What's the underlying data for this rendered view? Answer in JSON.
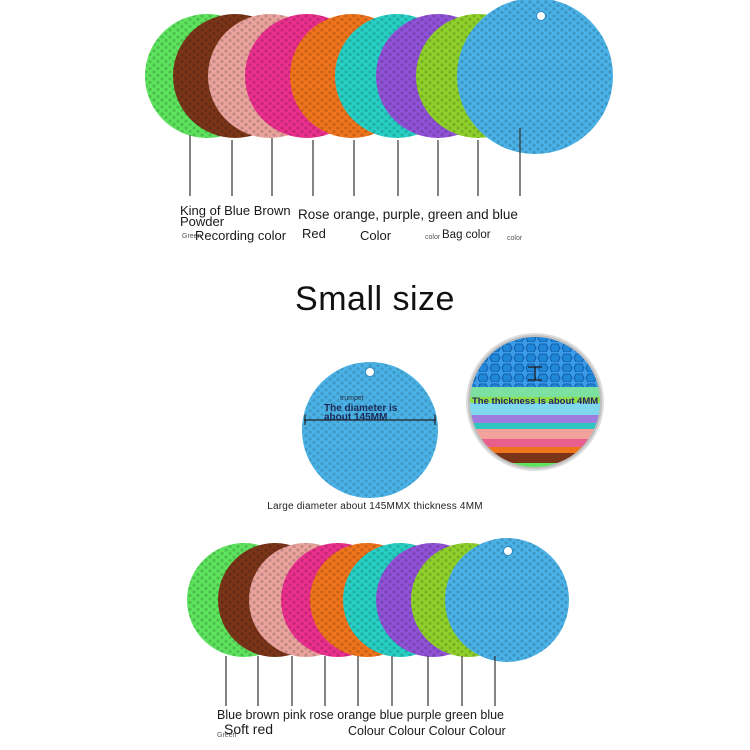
{
  "colors": {
    "green": "#5de35d",
    "brown": "#7a3519",
    "pink": "#eaa39d",
    "rose": "#ea2f8c",
    "orange": "#f0741c",
    "teal": "#27cfc4",
    "purple": "#9052d6",
    "lime": "#8fd12a",
    "blue": "#4ab2e6"
  },
  "top_labels": {
    "line1a": "King of Blue Brown",
    "line1b": "Powder",
    "line1c": "Rose orange, purple, green and blue",
    "line2a": "Recording color",
    "line2b": "Red",
    "line2c": "Color",
    "line2d": "Bag color",
    "tiny1": "Green",
    "tiny2": "color",
    "tiny3": "color"
  },
  "heading": "Small size",
  "diameter_callout": {
    "small_text": "trumpet",
    "text1": "The diameter is",
    "text2": "about 145MM"
  },
  "thickness_callout": "The thickness is about 4MM",
  "caption": "Large diameter about 145MMX thickness 4MM",
  "bottom_labels": {
    "line1": "Blue brown pink rose orange blue purple green blue",
    "line2a": "Soft red",
    "line2b": "Colour Colour Colour Colour",
    "tiny": "Green"
  }
}
